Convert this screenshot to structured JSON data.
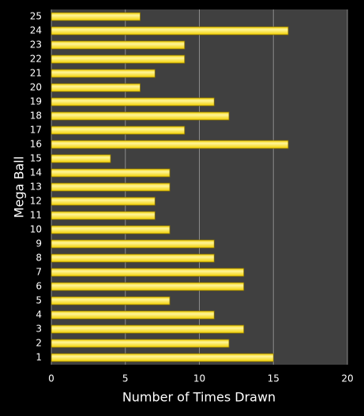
{
  "chart_data": {
    "type": "barh",
    "x_label": "Number of Times Drawn",
    "y_label": "Mega Ball",
    "categories": [
      "1",
      "2",
      "3",
      "4",
      "5",
      "6",
      "7",
      "8",
      "9",
      "10",
      "11",
      "12",
      "13",
      "14",
      "15",
      "16",
      "17",
      "18",
      "19",
      "20",
      "21",
      "22",
      "23",
      "24",
      "25"
    ],
    "values": [
      15,
      12,
      13,
      11,
      8,
      13,
      13,
      11,
      11,
      8,
      7,
      7,
      8,
      8,
      4,
      16,
      9,
      12,
      11,
      6,
      7,
      9,
      9,
      16,
      6
    ],
    "color": "#f2d000",
    "xlim": [
      0,
      20
    ],
    "xticks": [
      0,
      5,
      10,
      15,
      20
    ],
    "grid": true
  }
}
